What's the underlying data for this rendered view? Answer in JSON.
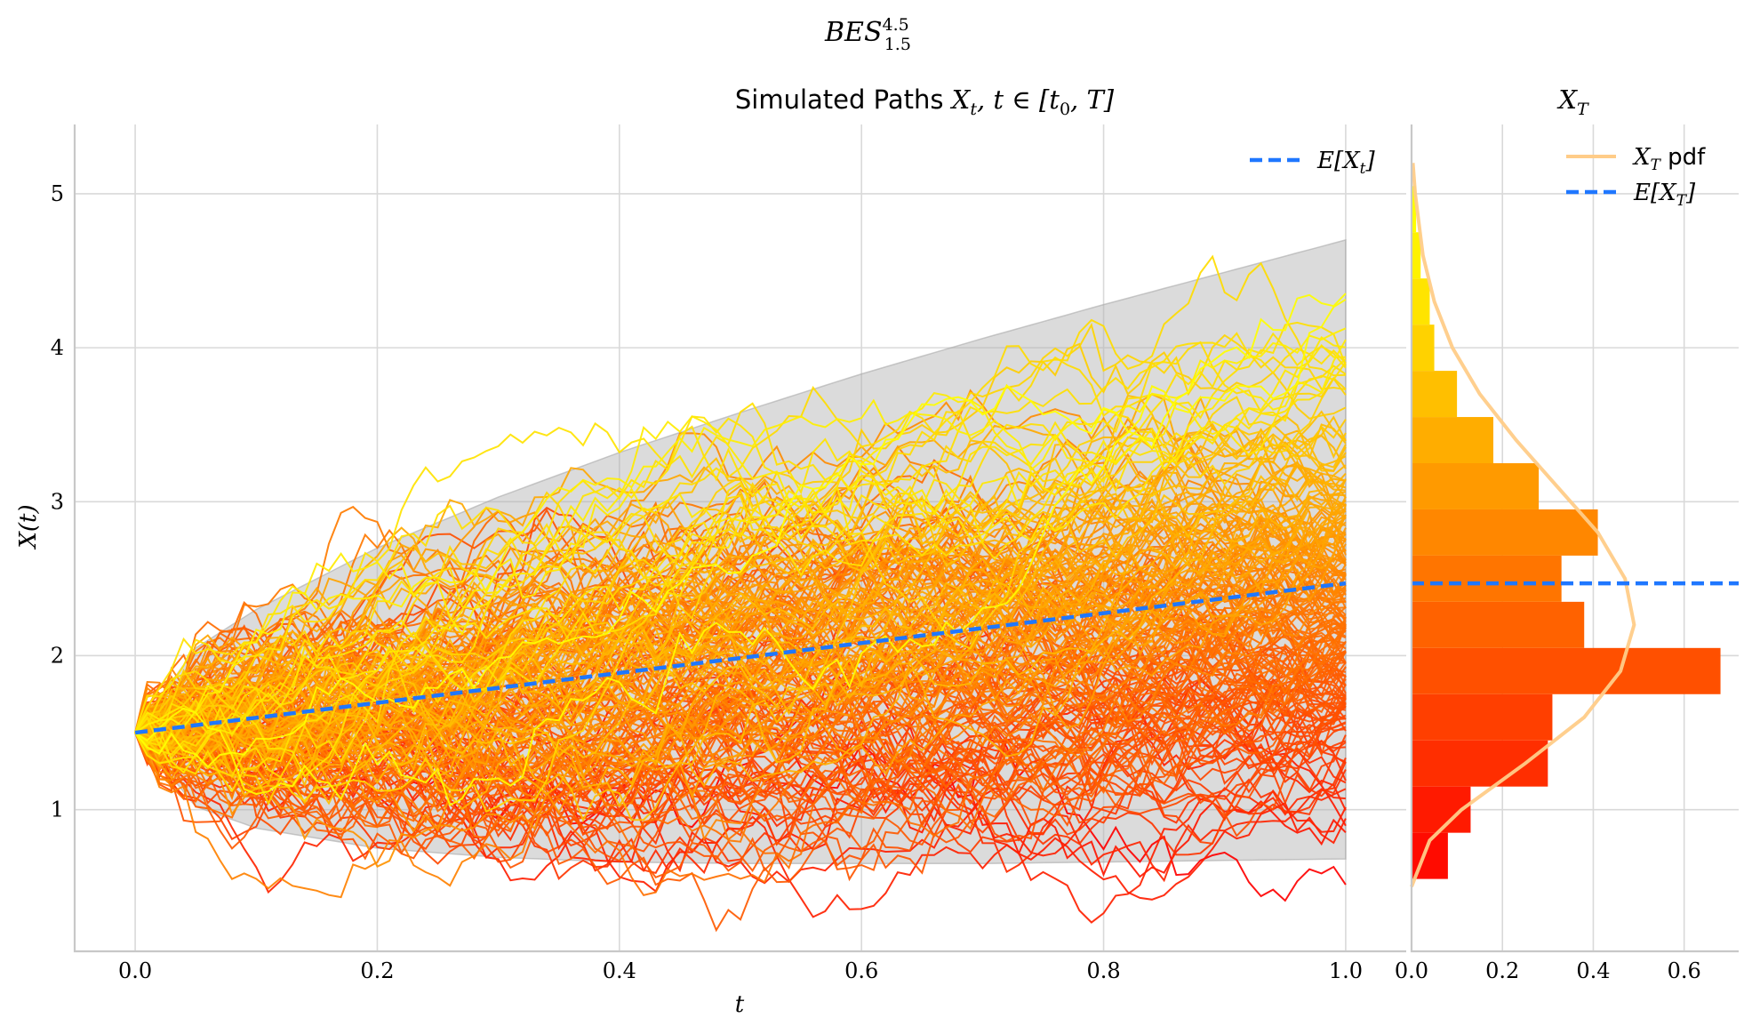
{
  "figure": {
    "suptitle": "BES",
    "suptitle_sup": "4.5",
    "suptitle_sub": "1.5"
  },
  "chart_data": [
    {
      "type": "line",
      "title_text": "Simulated Paths ",
      "title_math": "X",
      "title_math_sub": "t",
      "title_math_rest": ", t ∈ [t",
      "title_math_sub2": "0",
      "title_math_end": ", T]",
      "xlabel": "t",
      "ylabel": "X(t)",
      "xlim": [
        -0.05,
        1.05
      ],
      "ylim": [
        0.08,
        5.45
      ],
      "xticks": [
        "0.0",
        "0.2",
        "0.4",
        "0.6",
        "0.8",
        "1.0"
      ],
      "yticks": [
        "1",
        "2",
        "3",
        "4",
        "5"
      ],
      "x0": 1.5,
      "n_paths_approx": 200,
      "path_color_scale": "autumn (red = low terminal value, yellow = high)",
      "envelope": {
        "t": [
          0,
          0.05,
          0.1,
          0.2,
          0.3,
          0.4,
          0.5,
          0.6,
          0.7,
          0.8,
          0.9,
          1.0
        ],
        "upper": [
          1.5,
          2.05,
          2.3,
          2.7,
          3.03,
          3.32,
          3.58,
          3.83,
          4.06,
          4.28,
          4.49,
          4.7
        ],
        "lower": [
          1.5,
          1.02,
          0.88,
          0.75,
          0.69,
          0.66,
          0.65,
          0.65,
          0.65,
          0.66,
          0.67,
          0.68
        ]
      },
      "mean_line": {
        "t": [
          0,
          1.0
        ],
        "values": [
          1.5,
          2.47
        ],
        "color": "#1f77ff"
      },
      "legend": [
        {
          "label": "E[X",
          "label_sub": "t",
          "label_end": "]",
          "style": "dashed",
          "color": "#1f77ff"
        }
      ],
      "legend_position": "top-right",
      "grid": true
    },
    {
      "type": "bar",
      "orientation": "horizontal",
      "title_math": "X",
      "title_math_sub": "T",
      "xticks": [
        "0.0",
        "0.2",
        "0.4",
        "0.6"
      ],
      "xlim": [
        0,
        0.72
      ],
      "ylim": [
        0.08,
        5.45
      ],
      "bins": [
        {
          "y0": 0.55,
          "y1": 0.85,
          "density": 0.08,
          "color": "#ff0b00"
        },
        {
          "y0": 0.85,
          "y1": 1.15,
          "density": 0.13,
          "color": "#ff1a00"
        },
        {
          "y0": 1.15,
          "y1": 1.45,
          "density": 0.3,
          "color": "#ff2e00"
        },
        {
          "y0": 1.45,
          "y1": 1.75,
          "density": 0.31,
          "color": "#ff3f00"
        },
        {
          "y0": 1.75,
          "y1": 2.05,
          "density": 0.68,
          "color": "#ff5000"
        },
        {
          "y0": 2.05,
          "y1": 2.35,
          "density": 0.38,
          "color": "#ff6200"
        },
        {
          "y0": 2.35,
          "y1": 2.65,
          "density": 0.33,
          "color": "#ff7500"
        },
        {
          "y0": 2.65,
          "y1": 2.95,
          "density": 0.41,
          "color": "#ff8700"
        },
        {
          "y0": 2.95,
          "y1": 3.25,
          "density": 0.28,
          "color": "#ff9a00"
        },
        {
          "y0": 3.25,
          "y1": 3.55,
          "density": 0.18,
          "color": "#ffad00"
        },
        {
          "y0": 3.55,
          "y1": 3.85,
          "density": 0.1,
          "color": "#ffbf00"
        },
        {
          "y0": 3.85,
          "y1": 4.15,
          "density": 0.05,
          "color": "#ffd200"
        },
        {
          "y0": 4.15,
          "y1": 4.45,
          "density": 0.04,
          "color": "#ffe400"
        },
        {
          "y0": 4.45,
          "y1": 4.75,
          "density": 0.02,
          "color": "#fff200"
        },
        {
          "y0": 4.75,
          "y1": 5.05,
          "density": 0.01,
          "color": "#ffff00"
        }
      ],
      "pdf_curve": {
        "y": [
          0.5,
          0.8,
          1.0,
          1.3,
          1.6,
          1.9,
          2.2,
          2.5,
          2.8,
          3.1,
          3.4,
          3.7,
          4.0,
          4.3,
          4.6,
          5.0,
          5.2
        ],
        "density": [
          0.0,
          0.04,
          0.11,
          0.25,
          0.38,
          0.46,
          0.49,
          0.47,
          0.41,
          0.32,
          0.23,
          0.15,
          0.09,
          0.05,
          0.025,
          0.008,
          0.003
        ],
        "color": "#ffcc88"
      },
      "mean_value": 2.47,
      "legend": [
        {
          "label": "X",
          "label_sub": "T",
          "label_end": " pdf",
          "style": "solid",
          "color": "#ffcc88"
        },
        {
          "label": "E[X",
          "label_sub": "T",
          "label_end": "]",
          "style": "dashed",
          "color": "#1f77ff"
        }
      ],
      "legend_position": "top-right",
      "grid": true
    }
  ]
}
